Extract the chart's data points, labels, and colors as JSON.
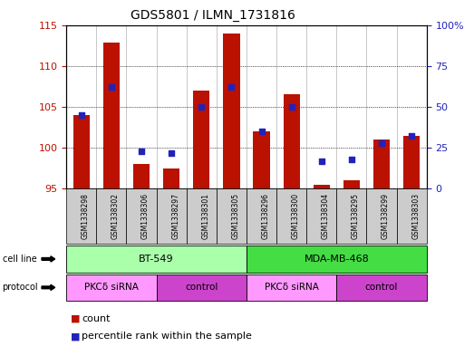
{
  "title": "GDS5801 / ILMN_1731816",
  "samples": [
    "GSM1338298",
    "GSM1338302",
    "GSM1338306",
    "GSM1338297",
    "GSM1338301",
    "GSM1338305",
    "GSM1338296",
    "GSM1338300",
    "GSM1338304",
    "GSM1338295",
    "GSM1338299",
    "GSM1338303"
  ],
  "bar_values": [
    104.0,
    112.8,
    98.0,
    97.5,
    107.0,
    114.0,
    102.0,
    106.5,
    95.5,
    96.0,
    101.0,
    101.5
  ],
  "dot_values": [
    45,
    62,
    23,
    22,
    50,
    62,
    35,
    50,
    17,
    18,
    28,
    32
  ],
  "ylim_left": [
    95,
    115
  ],
  "ylim_right": [
    0,
    100
  ],
  "yticks_left": [
    95,
    100,
    105,
    110,
    115
  ],
  "yticks_right": [
    0,
    25,
    50,
    75,
    100
  ],
  "bar_color": "#bb1100",
  "dot_color": "#2222bb",
  "bar_baseline": 95,
  "cell_line_groups": [
    {
      "label": "BT-549",
      "start": 0,
      "end": 6,
      "color": "#aaffaa"
    },
    {
      "label": "MDA-MB-468",
      "start": 6,
      "end": 12,
      "color": "#44dd44"
    }
  ],
  "protocol_groups": [
    {
      "label": "PKCδ siRNA",
      "start": 0,
      "end": 3,
      "color": "#ff88ff"
    },
    {
      "label": "control",
      "start": 3,
      "end": 6,
      "color": "#dd44dd"
    },
    {
      "label": "PKCδ siRNA",
      "start": 6,
      "end": 9,
      "color": "#ff88ff"
    },
    {
      "label": "control",
      "start": 9,
      "end": 12,
      "color": "#dd44dd"
    }
  ],
  "legend_items": [
    {
      "label": "count",
      "color": "#bb1100"
    },
    {
      "label": "percentile rank within the sample",
      "color": "#2222bb"
    }
  ],
  "background_color": "white",
  "plot_bg_color": "white",
  "label_bg_color": "#cccccc"
}
